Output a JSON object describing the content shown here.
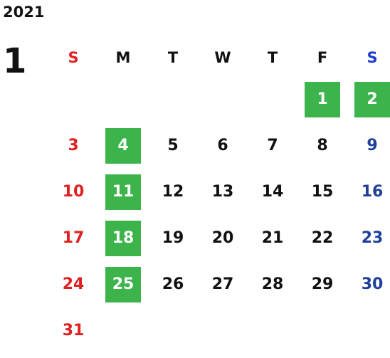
{
  "year": "2021",
  "month": "1",
  "colors": {
    "sunday": "#e02020",
    "saturday": "#1f3f9a",
    "highlight": "#3cb44b",
    "text": "#111111"
  },
  "weekdays": [
    "S",
    "M",
    "T",
    "W",
    "T",
    "F",
    "S"
  ],
  "weeks": [
    [
      "",
      "",
      "",
      "",
      "",
      "1",
      "2"
    ],
    [
      "3",
      "4",
      "5",
      "6",
      "7",
      "8",
      "9"
    ],
    [
      "10",
      "11",
      "12",
      "13",
      "14",
      "15",
      "16"
    ],
    [
      "17",
      "18",
      "19",
      "20",
      "21",
      "22",
      "23"
    ],
    [
      "24",
      "25",
      "26",
      "27",
      "28",
      "29",
      "30"
    ],
    [
      "31",
      "",
      "",
      "",
      "",
      "",
      ""
    ]
  ],
  "highlighted_days": [
    "1",
    "2",
    "4",
    "11",
    "18",
    "25"
  ]
}
